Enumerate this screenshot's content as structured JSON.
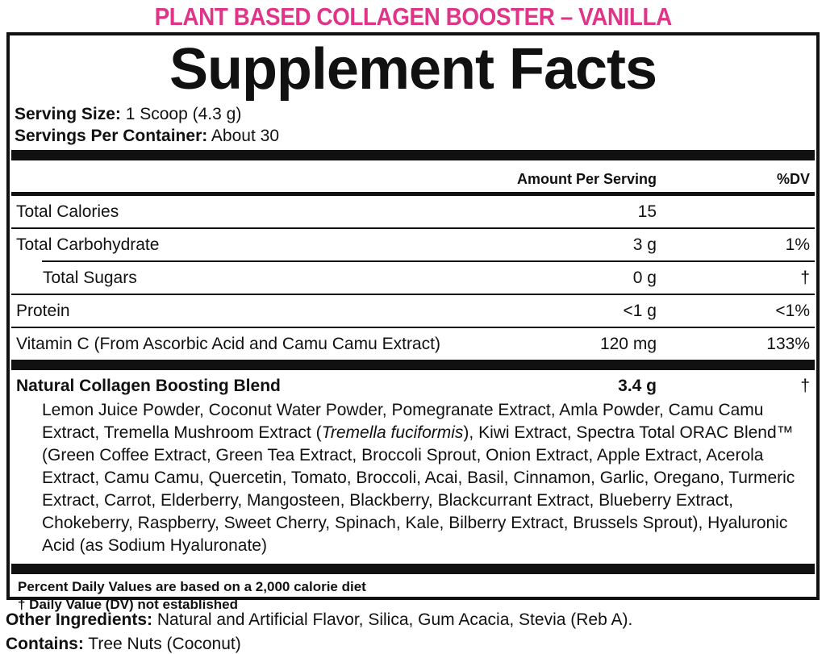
{
  "header": {
    "product_title": "PLANT BASED COLLAGEN BOOSTER – VANILLA",
    "accent_color": "#DE3588"
  },
  "panel": {
    "title": "Supplement Facts",
    "serving_size": {
      "label": "Serving Size:",
      "value": "1 Scoop (4.3 g)"
    },
    "servings_per_container": {
      "label": "Servings Per Container:",
      "value": "About 30"
    },
    "columns": {
      "amount": "Amount Per Serving",
      "dv": "%DV"
    },
    "rows": [
      {
        "name": "Total Calories",
        "amount": "15",
        "dv": ""
      },
      {
        "name": "Total Carbohydrate",
        "amount": "3 g",
        "dv": "1%"
      },
      {
        "name": "Total Sugars",
        "amount": "0 g",
        "dv": "†"
      },
      {
        "name": "Protein",
        "amount": "<1 g",
        "dv": "<1%"
      },
      {
        "name": "Vitamin C (From Ascorbic Acid and Camu Camu Extract)",
        "amount": "120 mg",
        "dv": "133%"
      }
    ],
    "blend": {
      "name": "Natural Collagen Boosting Blend",
      "amount": "3.4 g",
      "dv": "†"
    },
    "blend_ingredients": {
      "pre": "Lemon Juice Powder, Coconut Water Powder, Pomegranate Extract, Amla Powder, Camu Camu Extract, Tremella Mushroom Extract (",
      "italic": "Tremella fuciformis",
      "post": "), Kiwi Extract, Spectra Total ORAC Blend™ (Green Coffee Extract, Green Tea Extract, Broccoli Sprout, Onion Extract, Apple Extract, Acerola Extract, Camu Camu, Quercetin, Tomato, Broccoli, Acai, Basil, Cinnamon, Garlic, Oregano, Turmeric Extract, Carrot, Elderberry, Mangosteen, Blackberry, Blackcurrant Extract, Blueberry Extract, Chokeberry, Raspberry, Sweet Cherry, Spinach, Kale, Bilberry Extract, Brussels Sprout), Hyaluronic Acid (as Sodium Hyaluronate)"
    },
    "footnotes": {
      "line1": "Percent Daily Values are based on a 2,000 calorie diet",
      "line2": "† Daily Value (DV) not established"
    }
  },
  "footer": {
    "other_ingredients": {
      "label": "Other Ingredients:",
      "value": "Natural and Artificial Flavor, Silica, Gum Acacia, Stevia (Reb A)."
    },
    "contains": {
      "label": "Contains:",
      "value": "Tree Nuts (Coconut)"
    }
  }
}
